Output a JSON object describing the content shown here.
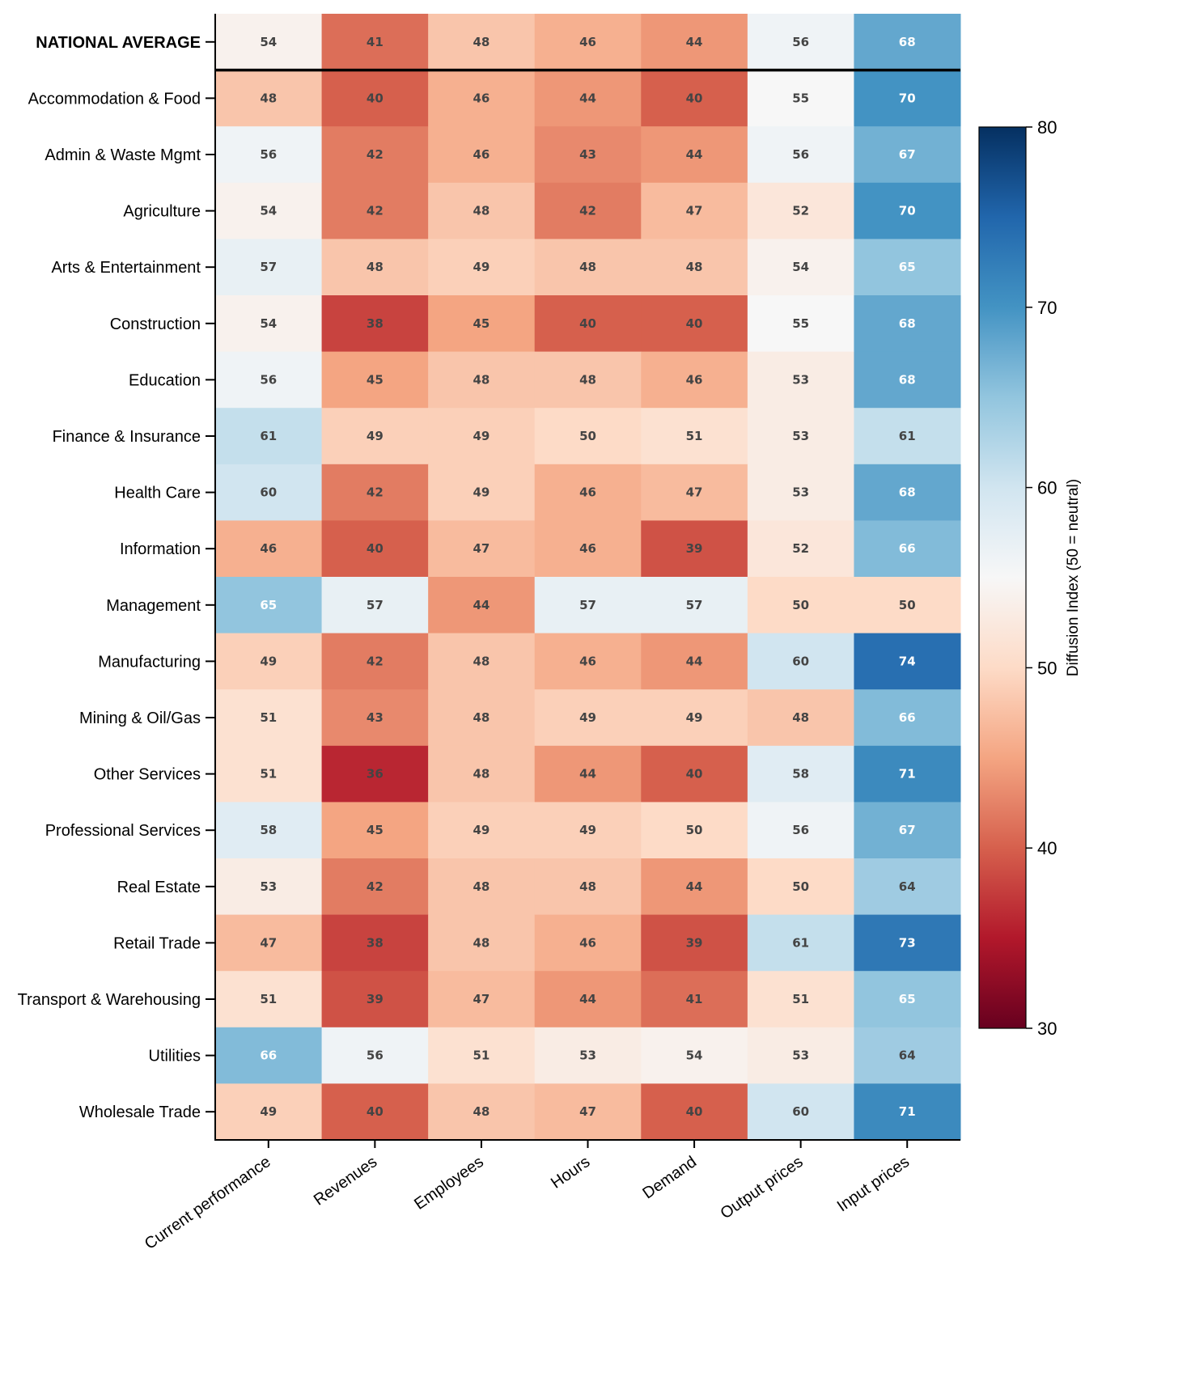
{
  "chart_data": {
    "type": "heatmap",
    "title": "",
    "xlabel": "",
    "ylabel": "",
    "colormap": "RdBu",
    "color_range": [
      30,
      80
    ],
    "colorbar": {
      "label": "Diffusion Index (50 = neutral)",
      "ticks": [
        30,
        40,
        50,
        60,
        70,
        80
      ],
      "tick_labels": [
        "30",
        "40",
        "50",
        "60",
        "70",
        "80"
      ],
      "placement": "right"
    },
    "columns": [
      "Current performance",
      "Revenues",
      "Employees",
      "Hours",
      "Demand",
      "Output prices",
      "Input prices"
    ],
    "rows": [
      "NATIONAL AVERAGE",
      "Accommodation & Food",
      "Admin & Waste Mgmt",
      "Agriculture",
      "Arts & Entertainment",
      "Construction",
      "Education",
      "Finance & Insurance",
      "Health Care",
      "Information",
      "Management",
      "Manufacturing",
      "Mining & Oil/Gas",
      "Other Services",
      "Professional Services",
      "Real Estate",
      "Retail Trade",
      "Transport & Warehousing",
      "Utilities",
      "Wholesale Trade"
    ],
    "highlighted_row": "NATIONAL AVERAGE",
    "values": [
      [
        54,
        41,
        48,
        46,
        44,
        56,
        68
      ],
      [
        48,
        40,
        46,
        44,
        40,
        55,
        70
      ],
      [
        56,
        42,
        46,
        43,
        44,
        56,
        67
      ],
      [
        54,
        42,
        48,
        42,
        47,
        52,
        70
      ],
      [
        57,
        48,
        49,
        48,
        48,
        54,
        65
      ],
      [
        54,
        38,
        45,
        40,
        40,
        55,
        68
      ],
      [
        56,
        45,
        48,
        48,
        46,
        53,
        68
      ],
      [
        61,
        49,
        49,
        50,
        51,
        53,
        61
      ],
      [
        60,
        42,
        49,
        46,
        47,
        53,
        68
      ],
      [
        46,
        40,
        47,
        46,
        39,
        52,
        66
      ],
      [
        65,
        57,
        44,
        57,
        57,
        50,
        50
      ],
      [
        49,
        42,
        48,
        46,
        44,
        60,
        74
      ],
      [
        51,
        43,
        48,
        49,
        49,
        48,
        66
      ],
      [
        51,
        36,
        48,
        44,
        40,
        58,
        71
      ],
      [
        58,
        45,
        49,
        49,
        50,
        56,
        67
      ],
      [
        53,
        42,
        48,
        48,
        44,
        50,
        64
      ],
      [
        47,
        38,
        48,
        46,
        39,
        61,
        73
      ],
      [
        51,
        39,
        47,
        44,
        41,
        51,
        65
      ],
      [
        66,
        56,
        51,
        53,
        54,
        53,
        64
      ],
      [
        49,
        40,
        48,
        47,
        40,
        60,
        71
      ]
    ],
    "text_colors": {
      "dark": "#444444",
      "light": "#ffffff"
    }
  }
}
